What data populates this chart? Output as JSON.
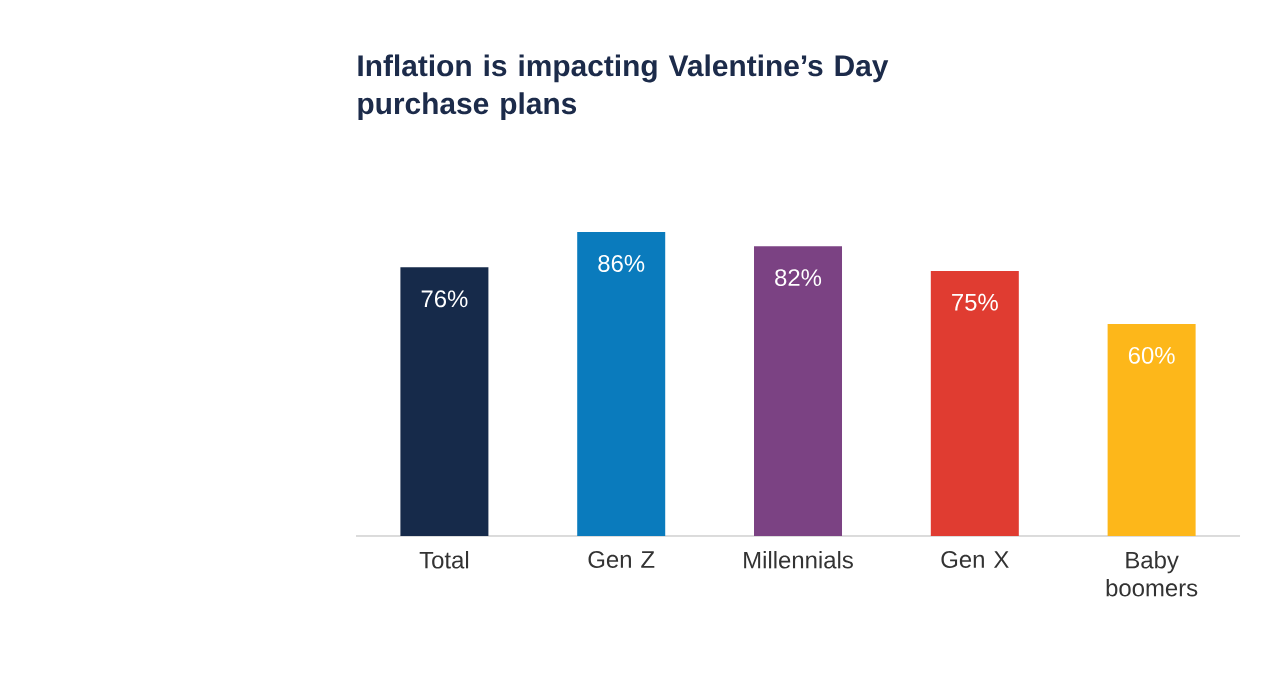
{
  "chart_data": {
    "type": "bar",
    "title": "Inflation is impacting Valentine’s Day purchase plans",
    "categories": [
      "Total",
      "Gen Z",
      "Millennials",
      "Gen X",
      "Baby boomers"
    ],
    "values": [
      76,
      86,
      82,
      75,
      60
    ],
    "colors": [
      "#162a4a",
      "#0a7bbd",
      "#7b4283",
      "#e03c31",
      "#fdb71a"
    ],
    "value_labels": [
      "76%",
      "86%",
      "82%",
      "75%",
      "60%"
    ]
  }
}
